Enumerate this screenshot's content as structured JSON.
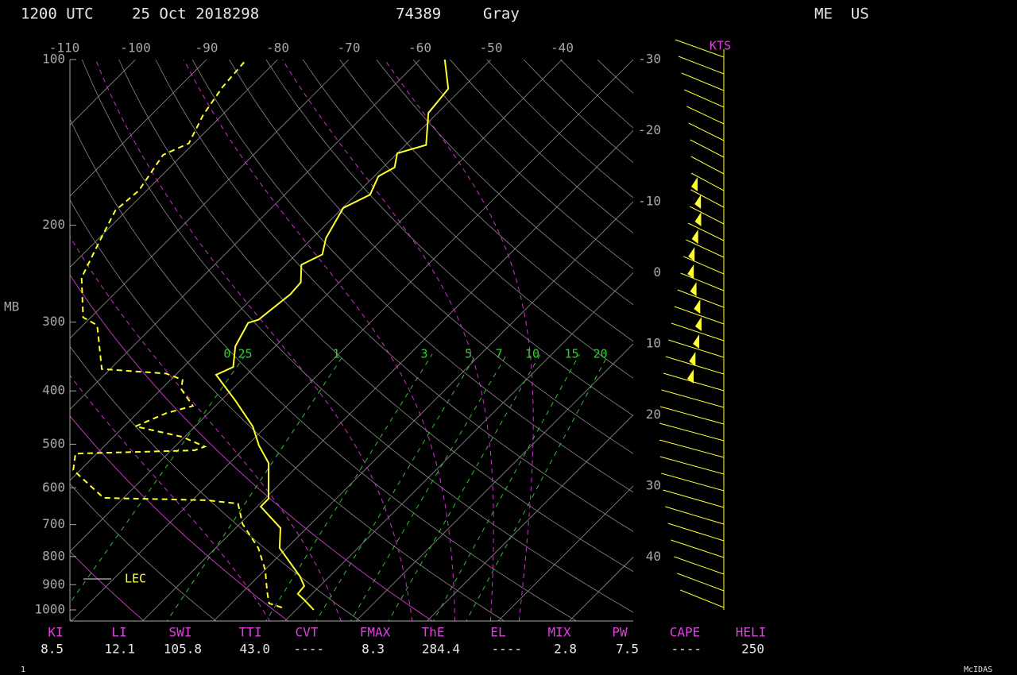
{
  "header": {
    "time": "1200 UTC",
    "date": "25 Oct 2018298",
    "station": "74389",
    "name": "Gray",
    "location": "ME  US"
  },
  "axes": {
    "pressure_label": "MB",
    "pressure_ticks": [
      100,
      200,
      300,
      400,
      500,
      600,
      700,
      800,
      900,
      1000
    ],
    "top_temperature_ticks": [
      -110,
      -100,
      -90,
      -80,
      -70,
      -60,
      -50,
      -40
    ],
    "right_temperature_ticks": [
      -30,
      -20,
      -10,
      0,
      10,
      20,
      30,
      40
    ],
    "wind_unit": "KTS"
  },
  "mixing_ratio_labels": [
    "0.25",
    "1",
    "3",
    "5",
    "7",
    "10",
    "15",
    "20"
  ],
  "temperature": {
    "pressure": [
      1000,
      958,
      935,
      905,
      870,
      772,
      710,
      649,
      628,
      541,
      503,
      464,
      417,
      374,
      362,
      332,
      301,
      297,
      267,
      254,
      236,
      226,
      211,
      186,
      176,
      163,
      157,
      148,
      143,
      125,
      113,
      100
    ],
    "values": [
      2.5,
      -0.3,
      -2.0,
      -2.2,
      -4.1,
      -11.0,
      -13.7,
      -19.5,
      -19.5,
      -24.5,
      -28.3,
      -31.9,
      -37.9,
      -44.3,
      -43.0,
      -45.6,
      -47.1,
      -46.1,
      -45.2,
      -45.4,
      -47.8,
      -46.3,
      -48.1,
      -49.9,
      -48.0,
      -49.4,
      -48.4,
      -50.0,
      -47.1,
      -51.3,
      -51.9,
      -56.5
    ]
  },
  "dewpoint": {
    "pressure": [
      990,
      973,
      927,
      847,
      772,
      698,
      641,
      632,
      626,
      557,
      520,
      513,
      505,
      485,
      464,
      439,
      426,
      397,
      382,
      372,
      365,
      304,
      294,
      249,
      215,
      188,
      173,
      149,
      142,
      126,
      112,
      100
    ],
    "values": [
      -2.3,
      -4.7,
      -6.6,
      -9.9,
      -14.0,
      -19.6,
      -23.1,
      -28.0,
      -42.8,
      -51.0,
      -53.0,
      -36.7,
      -35.8,
      -40.3,
      -48.4,
      -45.9,
      -43.2,
      -47.2,
      -48.3,
      -51.5,
      -61.2,
      -68.0,
      -71.1,
      -76.9,
      -79.4,
      -81.6,
      -81.1,
      -82.7,
      -80.7,
      -82.7,
      -83.9,
      -84.4
    ]
  },
  "legend": {
    "lcl_label": "LEC"
  },
  "indices": [
    {
      "name": "KI",
      "value": "8.5"
    },
    {
      "name": "LI",
      "value": "12.1"
    },
    {
      "name": "SWI",
      "value": "105.8"
    },
    {
      "name": "TTI",
      "value": "43.0"
    },
    {
      "name": "CVT",
      "value": "----"
    },
    {
      "name": "FMAX",
      "value": "8.3"
    },
    {
      "name": "ThE",
      "value": "284.4"
    },
    {
      "name": "EL",
      "value": "----"
    },
    {
      "name": "MIX",
      "value": "2.8"
    },
    {
      "name": "PW",
      "value": "7.5"
    },
    {
      "name": "CAPE",
      "value": "----"
    },
    {
      "name": "HELI",
      "value": "250"
    }
  ],
  "footer": {
    "page": "1",
    "brand": "McIDAS"
  }
}
